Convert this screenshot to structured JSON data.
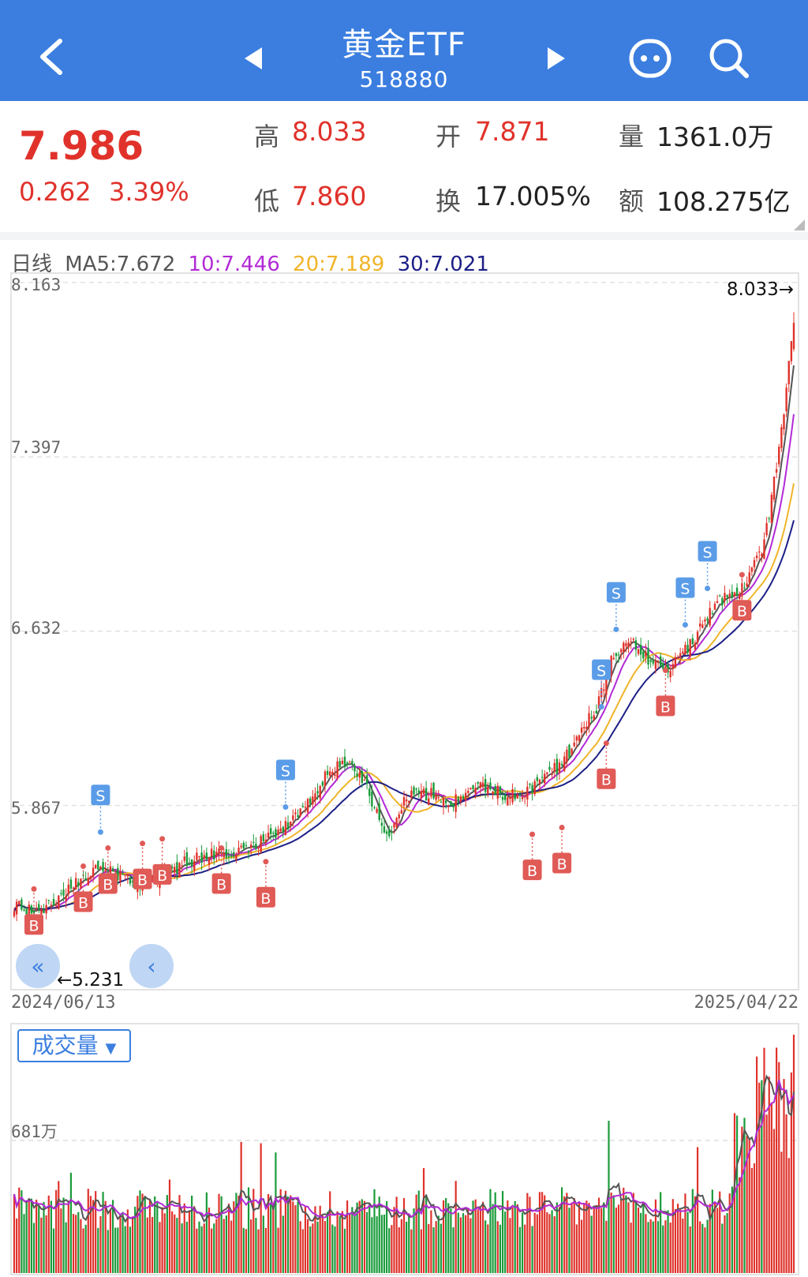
{
  "header": {
    "title": "黄金ETF",
    "code": "518880",
    "back_icon": "chevron-left-icon",
    "prev_icon": "triangle-left-icon",
    "next_icon": "triangle-right-icon",
    "chat_icon": "chat-bubble-icon",
    "search_icon": "search-icon",
    "bg_color": "#3b7ee0"
  },
  "quote": {
    "price": "7.986",
    "change": "0.262",
    "change_pct": "3.39%",
    "high_label": "高",
    "high": "8.033",
    "low_label": "低",
    "low": "7.860",
    "open_label": "开",
    "open": "7.871",
    "turnover_label": "换",
    "turnover": "17.005%",
    "volume_label": "量",
    "volume": "1361.0万",
    "amount_label": "额",
    "amount": "108.275亿",
    "up_color": "#e0322b"
  },
  "ma_legend": {
    "period": "日线",
    "ma5": "MA5:7.672",
    "ma10": "10:7.446",
    "ma20": "20:7.189",
    "ma30": "30:7.021",
    "colors": {
      "ma5": "#555555",
      "ma10": "#b22ad6",
      "ma20": "#f0b429",
      "ma30": "#1c1f86"
    }
  },
  "chart_data": {
    "type": "candlestick",
    "y_ticks": [
      "8.163",
      "7.397",
      "6.632",
      "5.867"
    ],
    "ylim": [
      5.231,
      8.163
    ],
    "max_marker": "8.033→",
    "min_marker": "←5.231",
    "start_date": "2024/06/13",
    "end_date": "2025/04/22",
    "buy_label": "B",
    "sell_label": "S",
    "close_anchors": [
      [
        0,
        5.43
      ],
      [
        10,
        5.4
      ],
      [
        25,
        5.52
      ],
      [
        35,
        5.6
      ],
      [
        50,
        5.52
      ],
      [
        60,
        5.55
      ],
      [
        70,
        5.62
      ],
      [
        80,
        5.65
      ],
      [
        95,
        5.68
      ],
      [
        110,
        5.78
      ],
      [
        118,
        5.85
      ],
      [
        128,
        6.02
      ],
      [
        135,
        6.06
      ],
      [
        142,
        5.98
      ],
      [
        148,
        5.8
      ],
      [
        152,
        5.75
      ],
      [
        158,
        5.9
      ],
      [
        168,
        5.92
      ],
      [
        178,
        5.88
      ],
      [
        188,
        5.95
      ],
      [
        198,
        5.92
      ],
      [
        206,
        5.9
      ],
      [
        214,
        5.98
      ],
      [
        222,
        6.05
      ],
      [
        230,
        6.2
      ],
      [
        236,
        6.3
      ],
      [
        242,
        6.5
      ],
      [
        248,
        6.6
      ],
      [
        254,
        6.55
      ],
      [
        260,
        6.48
      ],
      [
        264,
        6.45
      ],
      [
        270,
        6.52
      ],
      [
        276,
        6.6
      ],
      [
        282,
        6.72
      ],
      [
        288,
        6.78
      ],
      [
        294,
        6.8
      ],
      [
        300,
        6.92
      ],
      [
        304,
        7.02
      ],
      [
        309,
        7.35
      ],
      [
        313,
        7.7
      ],
      [
        316,
        7.986
      ]
    ],
    "buy_markers": [
      [
        8,
        5.5
      ],
      [
        28,
        5.6
      ],
      [
        38,
        5.68
      ],
      [
        52,
        5.7
      ],
      [
        60,
        5.72
      ],
      [
        84,
        5.68
      ],
      [
        102,
        5.62
      ],
      [
        210,
        5.74
      ],
      [
        222,
        5.77
      ],
      [
        240,
        6.14
      ],
      [
        264,
        6.46
      ],
      [
        295,
        6.88
      ]
    ],
    "sell_markers": [
      [
        35,
        5.75
      ],
      [
        110,
        5.86
      ],
      [
        238,
        6.3
      ],
      [
        244,
        6.64
      ],
      [
        272,
        6.66
      ],
      [
        281,
        6.82
      ]
    ],
    "volume": {
      "label": "成交量",
      "y_tick": "681万",
      "ymax": 1000,
      "y_tick_value": 681
    }
  }
}
